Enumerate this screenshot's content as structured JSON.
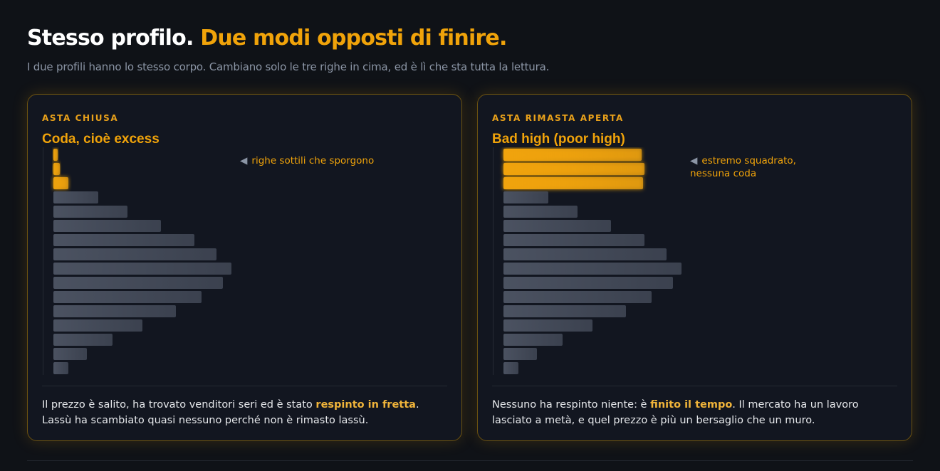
{
  "header": {
    "title_plain": "Stesso profilo.",
    "title_accent": "Due modi opposti di finire.",
    "subtitle": "I due profili hanno lo stesso corpo. Cambiano solo le tre righe in cima, ed è lì che sta tutta la lettura."
  },
  "chart_data": [
    {
      "type": "bar",
      "orientation": "horizontal",
      "eyebrow": "ASTA CHIUSA",
      "title": "Coda, cioè excess",
      "annotation": "righe sottili che sporgono",
      "categories": [
        null,
        null,
        null,
        null,
        null,
        null,
        null,
        null,
        null,
        null,
        null,
        null,
        null,
        null,
        null,
        null
      ],
      "values": [
        6,
        9,
        21,
        63,
        104,
        151,
        198,
        229,
        250,
        238,
        208,
        172,
        125,
        83,
        47,
        21
      ],
      "colors": [
        "#f0a30a",
        "#f0a30a",
        "#f0a30a",
        "#4b5261",
        "#4b5261",
        "#4b5261",
        "#4b5261",
        "#4b5261",
        "#4b5261",
        "#4b5261",
        "#4b5261",
        "#4b5261",
        "#4b5261",
        "#4b5261",
        "#4b5261",
        "#4b5261"
      ],
      "caption": [
        "Il prezzo è salito, ha trovato venditori seri ed è stato ",
        "respinto in fretta",
        ". Lassù ha scambiato quasi nessuno perché non è rimasto lassù."
      ]
    },
    {
      "type": "bar",
      "orientation": "horizontal",
      "eyebrow": "ASTA RIMASTA APERTA",
      "title": "Bad high (poor high)",
      "annotation": "estremo squadrato, nessuna coda",
      "categories": [
        null,
        null,
        null,
        null,
        null,
        null,
        null,
        null,
        null,
        null,
        null,
        null,
        null,
        null,
        null,
        null
      ],
      "values": [
        194,
        198,
        196,
        63,
        104,
        151,
        198,
        229,
        250,
        238,
        208,
        172,
        125,
        83,
        47,
        21
      ],
      "colors": [
        "#f0a30a",
        "#f0a30a",
        "#f0a30a",
        "#4b5261",
        "#4b5261",
        "#4b5261",
        "#4b5261",
        "#4b5261",
        "#4b5261",
        "#4b5261",
        "#4b5261",
        "#4b5261",
        "#4b5261",
        "#4b5261",
        "#4b5261",
        "#4b5261"
      ],
      "caption": [
        "Nessuno ha respinto niente: è ",
        "finito il tempo",
        ". Il mercato ha un lavoro lasciato a metà, e quel prezzo è più un bersaglio che un muro."
      ]
    }
  ]
}
